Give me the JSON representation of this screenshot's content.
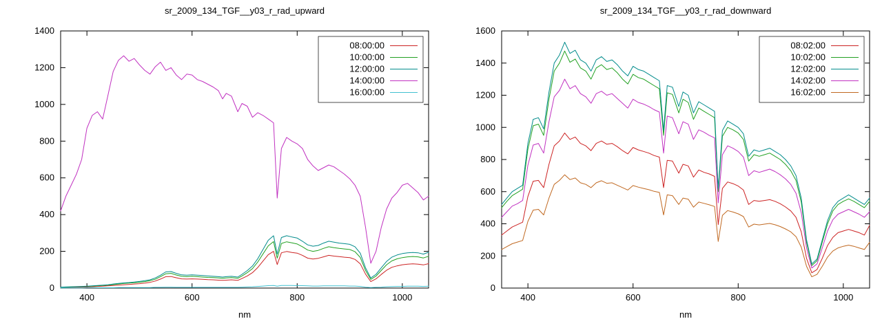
{
  "page": {
    "background": "#ffffff"
  },
  "chart_data": [
    {
      "type": "line",
      "title": "sr_2009_134_TGF__y03_r_rad_upward",
      "xlabel": "nm",
      "ylabel": "",
      "xlim": [
        350,
        1050
      ],
      "ylim": [
        0,
        1400
      ],
      "xticks": [
        400,
        600,
        800,
        1000
      ],
      "yticks": [
        0,
        200,
        400,
        600,
        800,
        1000,
        1200,
        1400
      ],
      "grid": false,
      "legend_position": "top-right",
      "x": [
        350,
        360,
        370,
        380,
        390,
        400,
        410,
        420,
        430,
        440,
        450,
        460,
        470,
        480,
        490,
        500,
        510,
        520,
        530,
        540,
        550,
        560,
        570,
        580,
        590,
        600,
        610,
        620,
        630,
        640,
        650,
        658,
        665,
        675,
        687,
        695,
        705,
        715,
        725,
        735,
        745,
        755,
        762,
        770,
        780,
        790,
        800,
        810,
        820,
        830,
        840,
        850,
        860,
        870,
        880,
        890,
        900,
        910,
        920,
        930,
        940,
        950,
        960,
        970,
        980,
        990,
        1000,
        1010,
        1020,
        1030,
        1040,
        1050
      ],
      "series": [
        {
          "name": "08:00:00",
          "color": "#cc2222",
          "values": [
            3,
            3,
            4,
            5,
            5,
            6,
            7,
            9,
            10,
            12,
            14,
            16,
            18,
            20,
            22,
            24,
            27,
            31,
            38,
            49,
            62,
            63,
            56,
            50,
            49,
            50,
            49,
            48,
            46,
            45,
            43,
            42,
            43,
            45,
            42,
            52,
            66,
            84,
            112,
            147,
            182,
            200,
            128,
            192,
            199,
            194,
            190,
            178,
            163,
            158,
            162,
            170,
            178,
            174,
            171,
            168,
            166,
            156,
            132,
            76,
            35,
            50,
            74,
            97,
            113,
            121,
            127,
            130,
            132,
            130,
            126,
            133
          ]
        },
        {
          "name": "10:00:00",
          "color": "#20a020",
          "values": [
            4,
            5,
            6,
            7,
            8,
            9,
            10,
            12,
            14,
            16,
            19,
            22,
            25,
            27,
            29,
            32,
            35,
            40,
            48,
            62,
            78,
            80,
            71,
            64,
            62,
            64,
            62,
            60,
            58,
            57,
            55,
            53,
            55,
            57,
            53,
            66,
            84,
            106,
            142,
            186,
            230,
            253,
            163,
            243,
            252,
            246,
            240,
            225,
            207,
            200,
            205,
            216,
            225,
            220,
            216,
            213,
            210,
            198,
            167,
            96,
            47,
            65,
            96,
            127,
            148,
            159,
            166,
            170,
            172,
            170,
            164,
            173
          ]
        },
        {
          "name": "12:00:00",
          "color": "#008b8b",
          "values": [
            5,
            6,
            7,
            8,
            9,
            10,
            12,
            14,
            16,
            18,
            22,
            25,
            28,
            30,
            33,
            36,
            40,
            45,
            55,
            70,
            88,
            90,
            80,
            72,
            70,
            72,
            70,
            68,
            66,
            64,
            62,
            60,
            62,
            64,
            60,
            75,
            95,
            120,
            160,
            210,
            260,
            285,
            185,
            275,
            285,
            278,
            272,
            255,
            235,
            228,
            232,
            245,
            255,
            250,
            245,
            242,
            238,
            225,
            190,
            110,
            55,
            75,
            110,
            145,
            168,
            180,
            188,
            192,
            194,
            192,
            185,
            195
          ]
        },
        {
          "name": "14:00:00",
          "color": "#c030c0",
          "values": [
            420,
            500,
            560,
            620,
            700,
            870,
            940,
            960,
            920,
            1050,
            1180,
            1240,
            1265,
            1235,
            1250,
            1215,
            1185,
            1165,
            1205,
            1230,
            1185,
            1200,
            1160,
            1135,
            1165,
            1160,
            1135,
            1125,
            1110,
            1095,
            1075,
            1030,
            1060,
            1045,
            960,
            1005,
            990,
            930,
            955,
            940,
            920,
            900,
            490,
            760,
            820,
            800,
            785,
            760,
            700,
            665,
            640,
            655,
            670,
            660,
            640,
            620,
            595,
            560,
            500,
            330,
            135,
            200,
            330,
            430,
            490,
            520,
            560,
            570,
            545,
            520,
            480,
            500
          ]
        },
        {
          "name": "16:00:00",
          "color": "#40c0d0",
          "values": [
            1,
            1,
            1,
            1,
            1,
            2,
            2,
            2,
            2,
            2,
            2,
            3,
            3,
            3,
            3,
            3,
            3,
            3,
            4,
            4,
            5,
            5,
            4,
            4,
            4,
            4,
            4,
            4,
            4,
            4,
            4,
            4,
            4,
            4,
            4,
            5,
            6,
            7,
            9,
            11,
            13,
            14,
            10,
            14,
            14,
            14,
            13,
            13,
            12,
            11,
            11,
            12,
            12,
            12,
            12,
            12,
            11,
            11,
            9,
            5,
            3,
            4,
            5,
            7,
            8,
            9,
            9,
            10,
            10,
            10,
            9,
            10
          ]
        }
      ]
    },
    {
      "type": "line",
      "title": "sr_2009_134_TGF__y03_r_rad_downward",
      "xlabel": "nm",
      "ylabel": "",
      "xlim": [
        350,
        1050
      ],
      "ylim": [
        0,
        1600
      ],
      "xticks": [
        400,
        600,
        800,
        1000
      ],
      "yticks": [
        0,
        200,
        400,
        600,
        800,
        1000,
        1200,
        1400,
        1600
      ],
      "grid": false,
      "legend_position": "top-right",
      "x": [
        350,
        360,
        370,
        380,
        390,
        400,
        410,
        420,
        430,
        440,
        450,
        460,
        470,
        480,
        490,
        500,
        510,
        520,
        530,
        540,
        550,
        560,
        570,
        580,
        590,
        600,
        610,
        620,
        630,
        640,
        650,
        658,
        665,
        675,
        687,
        695,
        705,
        715,
        725,
        735,
        745,
        755,
        762,
        770,
        780,
        790,
        800,
        810,
        820,
        830,
        840,
        850,
        860,
        870,
        880,
        890,
        900,
        910,
        920,
        930,
        940,
        950,
        960,
        970,
        980,
        990,
        1000,
        1010,
        1020,
        1030,
        1040,
        1050
      ],
      "series": [
        {
          "name": "08:02:00",
          "color": "#cc2222",
          "values": [
            330,
            355,
            380,
            395,
            410,
            570,
            665,
            670,
            625,
            770,
            885,
            915,
            965,
            925,
            940,
            900,
            885,
            855,
            900,
            915,
            895,
            900,
            880,
            855,
            835,
            875,
            860,
            850,
            840,
            825,
            815,
            625,
            795,
            790,
            715,
            770,
            760,
            690,
            735,
            720,
            710,
            695,
            395,
            620,
            660,
            650,
            635,
            610,
            520,
            545,
            540,
            545,
            550,
            540,
            525,
            505,
            480,
            440,
            350,
            185,
            95,
            115,
            185,
            265,
            315,
            345,
            355,
            365,
            355,
            345,
            330,
            390
          ]
        },
        {
          "name": "10:02:00",
          "color": "#20a020",
          "values": [
            500,
            540,
            575,
            595,
            615,
            865,
            1010,
            1020,
            950,
            1175,
            1350,
            1400,
            1475,
            1405,
            1425,
            1370,
            1350,
            1300,
            1370,
            1390,
            1360,
            1370,
            1340,
            1300,
            1270,
            1330,
            1310,
            1300,
            1280,
            1260,
            1240,
            950,
            1215,
            1205,
            1090,
            1175,
            1155,
            1050,
            1120,
            1100,
            1080,
            1060,
            600,
            945,
            1000,
            985,
            965,
            925,
            790,
            830,
            820,
            830,
            840,
            820,
            800,
            770,
            730,
            670,
            535,
            285,
            140,
            170,
            285,
            400,
            480,
            520,
            540,
            555,
            540,
            520,
            500,
            540
          ]
        },
        {
          "name": "12:02:00",
          "color": "#008b8b",
          "values": [
            520,
            560,
            600,
            620,
            640,
            900,
            1050,
            1060,
            990,
            1220,
            1400,
            1450,
            1530,
            1460,
            1480,
            1420,
            1400,
            1350,
            1420,
            1440,
            1410,
            1420,
            1390,
            1350,
            1320,
            1380,
            1360,
            1350,
            1330,
            1310,
            1290,
            980,
            1260,
            1250,
            1130,
            1220,
            1200,
            1090,
            1160,
            1140,
            1120,
            1100,
            620,
            980,
            1040,
            1020,
            1000,
            960,
            820,
            860,
            850,
            860,
            870,
            850,
            830,
            800,
            760,
            700,
            560,
            300,
            150,
            180,
            300,
            420,
            500,
            540,
            560,
            580,
            560,
            540,
            520,
            560
          ]
        },
        {
          "name": "14:02:00",
          "color": "#c030c0",
          "values": [
            440,
            475,
            510,
            525,
            545,
            765,
            890,
            900,
            840,
            1035,
            1190,
            1230,
            1300,
            1240,
            1260,
            1210,
            1190,
            1150,
            1210,
            1225,
            1200,
            1210,
            1180,
            1150,
            1120,
            1175,
            1155,
            1145,
            1130,
            1110,
            1095,
            840,
            1070,
            1060,
            960,
            1035,
            1020,
            925,
            985,
            970,
            950,
            935,
            530,
            830,
            885,
            870,
            850,
            815,
            700,
            730,
            720,
            730,
            740,
            725,
            705,
            680,
            645,
            590,
            470,
            250,
            125,
            150,
            250,
            355,
            425,
            460,
            475,
            490,
            475,
            460,
            440,
            475
          ]
        },
        {
          "name": "16:02:00",
          "color": "#c06820",
          "values": [
            240,
            258,
            276,
            286,
            296,
            415,
            485,
            490,
            455,
            560,
            645,
            670,
            705,
            675,
            685,
            655,
            645,
            625,
            655,
            668,
            652,
            655,
            640,
            625,
            610,
            638,
            628,
            620,
            612,
            602,
            595,
            455,
            580,
            575,
            520,
            560,
            553,
            503,
            535,
            527,
            518,
            508,
            290,
            452,
            482,
            473,
            462,
            445,
            380,
            398,
            393,
            398,
            402,
            394,
            383,
            368,
            350,
            320,
            255,
            135,
            70,
            85,
            135,
            193,
            230,
            250,
            260,
            267,
            260,
            250,
            240,
            285
          ]
        }
      ]
    }
  ]
}
